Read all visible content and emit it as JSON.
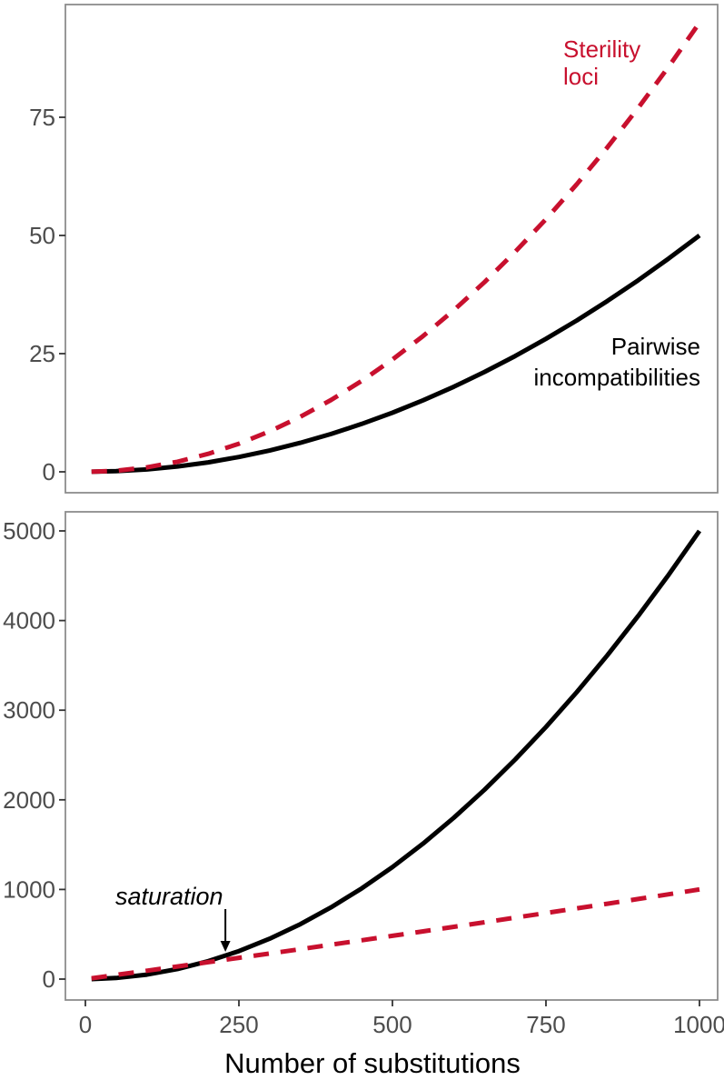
{
  "figure": {
    "xlabel": "Number of substitutions"
  },
  "colors": {
    "red": "#C8102E",
    "black": "#000000",
    "axis_text": "#4d4d4d",
    "tick_mark": "#333333",
    "panel_border": "#8c8c8c"
  },
  "legends": {
    "sterility_line1": "Sterility",
    "sterility_line2": "loci",
    "pairwise_line1": "Pairwise",
    "pairwise_line2": "incompatibilities"
  },
  "annotation": {
    "text": "saturation"
  },
  "chart_data": [
    {
      "type": "line",
      "panel": "top",
      "title": "",
      "xlabel": "",
      "ylabel": "",
      "xlim": [
        0,
        1000
      ],
      "ylim": [
        0,
        98
      ],
      "grid": false,
      "legend_position": "inline-annotations",
      "yticks": [
        0,
        25,
        50,
        75
      ],
      "xticks": [],
      "x": [
        10,
        50,
        100,
        150,
        200,
        250,
        300,
        350,
        400,
        450,
        500,
        550,
        600,
        650,
        700,
        750,
        800,
        850,
        900,
        950,
        1000
      ],
      "series": [
        {
          "id": "pairwise-incompatibilities-top",
          "name": "Pairwise incompatibilities",
          "style": "solid",
          "color": "#000000",
          "values": [
            0.01,
            0.13,
            0.5,
            1.13,
            2,
            3.13,
            4.5,
            6.13,
            8,
            10.13,
            12.5,
            15.13,
            18,
            21.13,
            24.5,
            28.13,
            32,
            36.13,
            40.5,
            45.13,
            50
          ]
        },
        {
          "id": "sterility-loci-top",
          "name": "Sterility loci",
          "style": "dashed",
          "color": "#C8102E",
          "values": [
            0.01,
            0.24,
            0.95,
            2.14,
            3.8,
            5.94,
            8.55,
            11.64,
            15.2,
            19.24,
            23.75,
            28.74,
            34.2,
            40.14,
            46.55,
            53.44,
            60.8,
            68.64,
            76.95,
            85.74,
            95
          ]
        }
      ]
    },
    {
      "type": "line",
      "panel": "bottom",
      "title": "",
      "xlabel": "Number of substitutions",
      "ylabel": "",
      "xlim": [
        0,
        1000
      ],
      "ylim": [
        0,
        5200
      ],
      "grid": false,
      "legend_position": "none",
      "yticks": [
        0,
        1000,
        2000,
        3000,
        4000,
        5000
      ],
      "xticks": [
        0,
        250,
        500,
        750,
        1000
      ],
      "x": [
        10,
        50,
        100,
        150,
        200,
        250,
        300,
        350,
        400,
        450,
        500,
        550,
        600,
        650,
        700,
        750,
        800,
        850,
        900,
        950,
        1000
      ],
      "series": [
        {
          "id": "pairwise-incompatibilities-bottom",
          "name": "Pairwise incompatibilities",
          "style": "solid",
          "color": "#000000",
          "values": [
            0.5,
            12.5,
            50,
            112.5,
            200,
            312.5,
            450,
            612.5,
            800,
            1012.5,
            1250,
            1512.5,
            1800,
            2112.5,
            2450,
            2812.5,
            3200,
            3612.5,
            4050,
            4512.5,
            5000
          ]
        },
        {
          "id": "substitutions-saturation-bottom",
          "name": "Sterility loci (saturating substitutions)",
          "style": "dashed",
          "color": "#C8102E",
          "values": [
            9.3,
            46.7,
            93.7,
            141.1,
            188.8,
            236.9,
            285.3,
            334.1,
            383.2,
            432.7,
            482.5,
            532.7,
            583.2,
            634.1,
            685.3,
            736.9,
            788.8,
            841.1,
            893.7,
            946.7,
            1000
          ]
        }
      ],
      "annotation": {
        "text": "saturation",
        "text_x_data": 49,
        "text_y_data": 832,
        "arrow_x_data": 228,
        "arrow_y_from_data": 781,
        "arrow_y_to_data": 304
      }
    }
  ]
}
